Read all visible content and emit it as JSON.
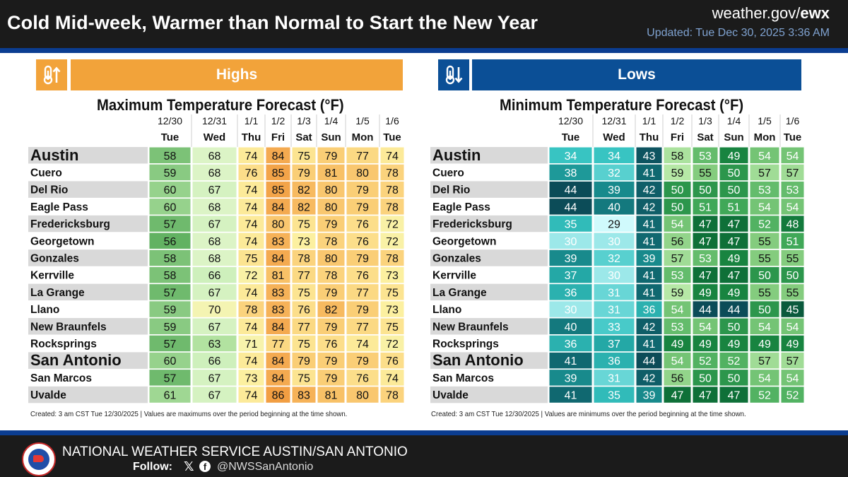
{
  "header": {
    "title": "Cold Mid-week, Warmer than Normal to Start the New Year",
    "site_prefix": "weather.gov/",
    "site_suffix": "ewx",
    "updated": "Updated: Tue Dec 30, 2025 3:36 AM"
  },
  "colors": {
    "header_bg": "#1b1b1b",
    "band_blue": "#0b3d91",
    "highs_accent": "#f2a33a",
    "lows_accent": "#0b4f96"
  },
  "icons": {
    "highs": "thermometer-up-icon",
    "lows": "thermometer-down-icon",
    "logo": "nws-logo-icon",
    "x": "x-icon",
    "facebook": "facebook-icon"
  },
  "highs": {
    "banner": "Highs",
    "note": "Created: 3 am CST Tue 12/30/2025  |  Values are maximums over the period beginning at the time shown."
  },
  "lows": {
    "banner": "Lows",
    "note": "Created: 3 am CST Tue 12/30/2025  |  Values are minimums over the period beginning at the time shown."
  },
  "footer": {
    "office": "NATIONAL WEATHER SERVICE AUSTIN/SAN ANTONIO",
    "follow": "Follow:",
    "x_glyph": "𝕏",
    "fb_glyph": "f",
    "handle": "@NWSSanAntonio"
  },
  "chart_data": [
    {
      "type": "table",
      "title": "Maximum Temperature Forecast (°F)",
      "dates": [
        "12/30",
        "12/31",
        "1/1",
        "1/2",
        "1/3",
        "1/4",
        "1/5",
        "1/6"
      ],
      "days": [
        "Tue",
        "Wed",
        "Thu",
        "Fri",
        "Sat",
        "Sun",
        "Mon",
        "Tue"
      ],
      "rows": [
        {
          "city": "Austin",
          "major": true,
          "values": [
            58,
            68,
            74,
            84,
            75,
            79,
            77,
            74
          ]
        },
        {
          "city": "Cuero",
          "major": false,
          "values": [
            59,
            68,
            76,
            85,
            79,
            81,
            80,
            78
          ]
        },
        {
          "city": "Del Rio",
          "major": false,
          "values": [
            60,
            67,
            74,
            85,
            82,
            80,
            79,
            78
          ]
        },
        {
          "city": "Eagle Pass",
          "major": false,
          "values": [
            60,
            68,
            74,
            84,
            82,
            80,
            79,
            78
          ]
        },
        {
          "city": "Fredericksburg",
          "major": false,
          "values": [
            57,
            67,
            74,
            80,
            75,
            79,
            76,
            72
          ]
        },
        {
          "city": "Georgetown",
          "major": false,
          "values": [
            56,
            68,
            74,
            83,
            73,
            78,
            76,
            72
          ]
        },
        {
          "city": "Gonzales",
          "major": false,
          "values": [
            58,
            68,
            75,
            84,
            78,
            80,
            79,
            78
          ]
        },
        {
          "city": "Kerrville",
          "major": false,
          "values": [
            58,
            66,
            72,
            81,
            77,
            78,
            76,
            73
          ]
        },
        {
          "city": "La Grange",
          "major": false,
          "values": [
            57,
            67,
            74,
            83,
            75,
            79,
            77,
            75
          ]
        },
        {
          "city": "Llano",
          "major": false,
          "values": [
            59,
            70,
            78,
            83,
            76,
            82,
            79,
            73
          ]
        },
        {
          "city": "New Braunfels",
          "major": false,
          "values": [
            59,
            67,
            74,
            84,
            77,
            79,
            77,
            75
          ]
        },
        {
          "city": "Rocksprings",
          "major": false,
          "values": [
            57,
            63,
            71,
            77,
            75,
            76,
            74,
            72
          ]
        },
        {
          "city": "San Antonio",
          "major": true,
          "values": [
            60,
            66,
            74,
            84,
            79,
            79,
            79,
            76
          ]
        },
        {
          "city": "San Marcos",
          "major": false,
          "values": [
            57,
            67,
            73,
            84,
            75,
            79,
            76,
            74
          ]
        },
        {
          "city": "Uvalde",
          "major": false,
          "values": [
            61,
            67,
            74,
            86,
            83,
            81,
            80,
            78
          ]
        }
      ]
    },
    {
      "type": "table",
      "title": "Minimum Temperature Forecast (°F)",
      "dates": [
        "12/30",
        "12/31",
        "1/1",
        "1/2",
        "1/3",
        "1/4",
        "1/5",
        "1/6"
      ],
      "days": [
        "Tue",
        "Wed",
        "Thu",
        "Fri",
        "Sat",
        "Sun",
        "Mon",
        "Tue"
      ],
      "rows": [
        {
          "city": "Austin",
          "major": true,
          "values": [
            34,
            34,
            43,
            58,
            53,
            49,
            54,
            54
          ]
        },
        {
          "city": "Cuero",
          "major": false,
          "values": [
            38,
            32,
            41,
            59,
            55,
            50,
            57,
            57
          ]
        },
        {
          "city": "Del Rio",
          "major": false,
          "values": [
            44,
            39,
            42,
            50,
            50,
            50,
            53,
            53
          ]
        },
        {
          "city": "Eagle Pass",
          "major": false,
          "values": [
            44,
            40,
            42,
            50,
            51,
            51,
            54,
            54
          ]
        },
        {
          "city": "Fredericksburg",
          "major": false,
          "values": [
            35,
            29,
            41,
            54,
            47,
            47,
            52,
            48
          ]
        },
        {
          "city": "Georgetown",
          "major": false,
          "values": [
            30,
            30,
            41,
            56,
            47,
            47,
            55,
            51
          ]
        },
        {
          "city": "Gonzales",
          "major": false,
          "values": [
            39,
            32,
            39,
            57,
            53,
            49,
            55,
            55
          ]
        },
        {
          "city": "Kerrville",
          "major": false,
          "values": [
            37,
            30,
            41,
            53,
            47,
            47,
            50,
            50
          ]
        },
        {
          "city": "La Grange",
          "major": false,
          "values": [
            36,
            31,
            41,
            59,
            49,
            49,
            55,
            55
          ]
        },
        {
          "city": "Llano",
          "major": false,
          "values": [
            30,
            31,
            36,
            54,
            44,
            44,
            50,
            45
          ]
        },
        {
          "city": "New Braunfels",
          "major": false,
          "values": [
            40,
            33,
            42,
            53,
            54,
            50,
            54,
            54
          ]
        },
        {
          "city": "Rocksprings",
          "major": false,
          "values": [
            36,
            37,
            41,
            49,
            49,
            49,
            49,
            49
          ]
        },
        {
          "city": "San Antonio",
          "major": true,
          "values": [
            41,
            36,
            44,
            54,
            52,
            52,
            57,
            57
          ]
        },
        {
          "city": "San Marcos",
          "major": false,
          "values": [
            39,
            31,
            42,
            56,
            50,
            50,
            54,
            54
          ]
        },
        {
          "city": "Uvalde",
          "major": false,
          "values": [
            41,
            35,
            39,
            47,
            47,
            47,
            52,
            52
          ]
        }
      ]
    }
  ]
}
